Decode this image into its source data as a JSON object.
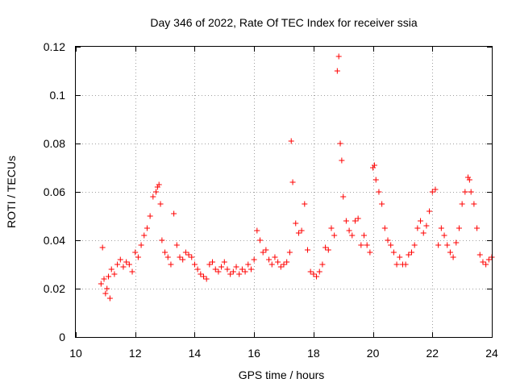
{
  "chart_data": {
    "type": "scatter",
    "title": "Day 346 of 2022, Rate Of TEC Index for receiver ssia",
    "xlabel": "GPS time / hours",
    "ylabel": "ROTI / TECUs",
    "xlim": [
      10,
      24
    ],
    "ylim": [
      0,
      0.12
    ],
    "x_ticks": [
      10,
      12,
      14,
      16,
      18,
      20,
      22,
      24
    ],
    "y_ticks": [
      0,
      0.02,
      0.04,
      0.06,
      0.08,
      0.1,
      0.12
    ],
    "x_tick_labels": [
      "10",
      "12",
      "14",
      "16",
      "18",
      "20",
      "22",
      "24"
    ],
    "y_tick_labels": [
      "0",
      "0.02",
      "0.04",
      "0.06",
      "0.08",
      "0.1",
      "0.12"
    ],
    "grid": true,
    "marker": "plus",
    "color": "#ff0000",
    "series": [
      {
        "x": [
          10.85,
          10.9,
          10.95,
          11.0,
          11.05,
          11.1,
          11.15,
          11.2,
          11.3,
          11.4,
          11.5,
          11.6,
          11.7,
          11.8,
          11.9,
          12.0,
          12.1,
          12.2,
          12.3,
          12.4,
          12.5,
          12.6,
          12.7,
          12.75,
          12.8,
          12.85,
          12.9,
          13.0,
          13.1,
          13.2,
          13.3,
          13.4,
          13.5,
          13.6,
          13.7,
          13.8,
          13.9,
          14.0,
          14.1,
          14.2,
          14.3,
          14.4,
          14.5,
          14.6,
          14.7,
          14.8,
          14.9,
          15.0,
          15.1,
          15.2,
          15.3,
          15.4,
          15.5,
          15.6,
          15.7,
          15.8,
          15.9,
          16.0,
          16.1,
          16.2,
          16.3,
          16.4,
          16.5,
          16.6,
          16.7,
          16.8,
          16.9,
          17.0,
          17.1,
          17.2,
          17.25,
          17.3,
          17.4,
          17.5,
          17.6,
          17.7,
          17.8,
          17.9,
          18.0,
          18.1,
          18.2,
          18.3,
          18.4,
          18.5,
          18.6,
          18.7,
          18.8,
          18.85,
          18.9,
          18.95,
          19.0,
          19.1,
          19.2,
          19.3,
          19.4,
          19.5,
          19.6,
          19.7,
          19.8,
          19.9,
          20.0,
          20.05,
          20.1,
          20.2,
          20.3,
          20.4,
          20.5,
          20.6,
          20.7,
          20.8,
          20.9,
          21.0,
          21.1,
          21.2,
          21.3,
          21.4,
          21.5,
          21.6,
          21.7,
          21.8,
          21.9,
          22.0,
          22.1,
          22.2,
          22.3,
          22.4,
          22.5,
          22.6,
          22.7,
          22.8,
          22.9,
          23.0,
          23.1,
          23.2,
          23.25,
          23.3,
          23.4,
          23.5,
          23.6,
          23.7,
          23.8,
          23.9,
          24.0
        ],
        "y": [
          0.022,
          0.037,
          0.024,
          0.018,
          0.02,
          0.025,
          0.016,
          0.028,
          0.026,
          0.03,
          0.032,
          0.029,
          0.031,
          0.03,
          0.027,
          0.035,
          0.033,
          0.038,
          0.042,
          0.045,
          0.05,
          0.058,
          0.06,
          0.062,
          0.063,
          0.055,
          0.04,
          0.035,
          0.033,
          0.03,
          0.051,
          0.038,
          0.033,
          0.032,
          0.035,
          0.034,
          0.033,
          0.03,
          0.028,
          0.026,
          0.025,
          0.024,
          0.03,
          0.031,
          0.028,
          0.027,
          0.029,
          0.031,
          0.028,
          0.026,
          0.027,
          0.029,
          0.026,
          0.028,
          0.027,
          0.03,
          0.028,
          0.032,
          0.044,
          0.04,
          0.035,
          0.036,
          0.032,
          0.03,
          0.033,
          0.031,
          0.029,
          0.03,
          0.031,
          0.035,
          0.081,
          0.064,
          0.047,
          0.043,
          0.044,
          0.055,
          0.036,
          0.027,
          0.026,
          0.025,
          0.027,
          0.03,
          0.037,
          0.036,
          0.045,
          0.042,
          0.11,
          0.116,
          0.08,
          0.073,
          0.058,
          0.048,
          0.044,
          0.042,
          0.048,
          0.049,
          0.038,
          0.042,
          0.038,
          0.035,
          0.07,
          0.071,
          0.065,
          0.06,
          0.055,
          0.045,
          0.04,
          0.038,
          0.035,
          0.03,
          0.033,
          0.03,
          0.03,
          0.034,
          0.035,
          0.038,
          0.045,
          0.048,
          0.043,
          0.046,
          0.052,
          0.06,
          0.061,
          0.038,
          0.045,
          0.042,
          0.038,
          0.035,
          0.033,
          0.039,
          0.045,
          0.055,
          0.06,
          0.066,
          0.065,
          0.06,
          0.055,
          0.045,
          0.034,
          0.031,
          0.03,
          0.032,
          0.033
        ]
      }
    ]
  }
}
